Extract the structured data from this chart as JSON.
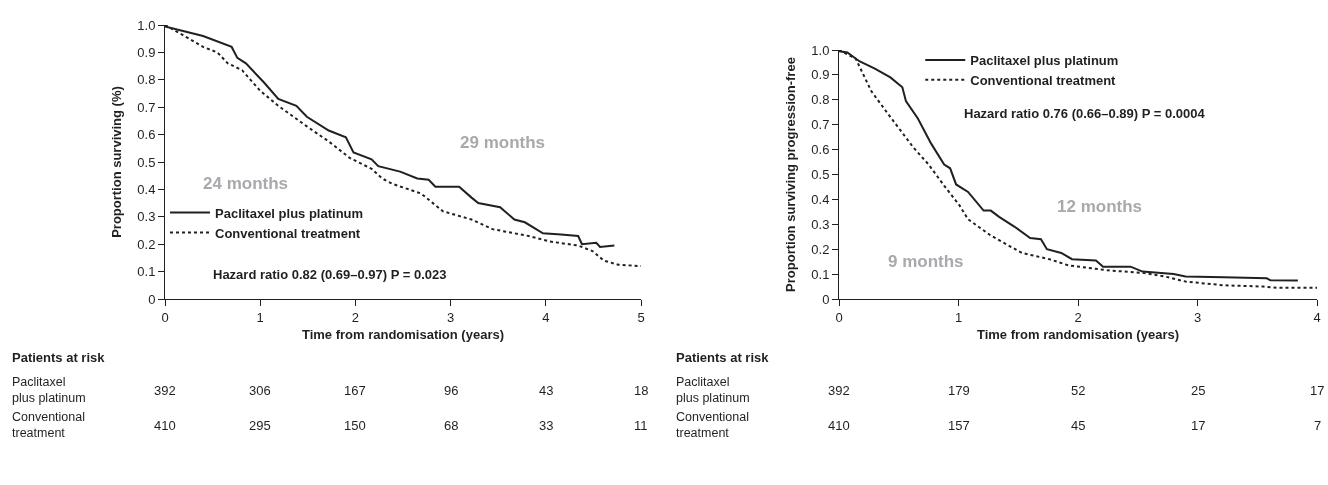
{
  "chart_data": [
    {
      "type": "line",
      "xlabel": "Time from randomisation (years)",
      "ylabel": "Proportion surviving (%)",
      "xlim": [
        0,
        5
      ],
      "xticks": [
        0,
        1,
        2,
        3,
        4,
        5
      ],
      "ylim": [
        0,
        1
      ],
      "yticks": [
        0,
        0.1,
        0.2,
        0.3,
        0.4,
        0.5,
        0.6,
        0.7,
        0.8,
        0.9,
        {
          "value": 1,
          "label": "1.0"
        }
      ],
      "grid": false,
      "legend": "bottom left",
      "marker": "none",
      "series": [
        {
          "name": "Paclitaxel plus platinum",
          "color": "#231f20",
          "line_style": "solid",
          "x": [
            0,
            0.4,
            0.7,
            0.76,
            0.85,
            1.04,
            1.19,
            1.38,
            1.49,
            1.72,
            1.9,
            1.98,
            2.17,
            2.24,
            2.47,
            2.65,
            2.77,
            2.84,
            3.09,
            3.22,
            3.29,
            3.52,
            3.67,
            3.78,
            3.97,
            4.16,
            4.34,
            4.38,
            4.53,
            4.57,
            4.72
          ],
          "values": [
            0.995,
            0.96,
            0.92,
            0.88,
            0.86,
            0.79,
            0.73,
            0.705,
            0.665,
            0.615,
            0.59,
            0.535,
            0.51,
            0.485,
            0.465,
            0.44,
            0.435,
            0.41,
            0.41,
            0.37,
            0.35,
            0.335,
            0.29,
            0.28,
            0.24,
            0.235,
            0.23,
            0.2,
            0.205,
            0.19,
            0.195
          ]
        },
        {
          "name": "Conventional treatment",
          "color": "#231f20",
          "line_style": "dotted",
          "x": [
            0,
            0.18,
            0.4,
            0.55,
            0.66,
            0.81,
            1,
            1.19,
            1.49,
            1.72,
            1.94,
            2.17,
            2.28,
            2.39,
            2.69,
            2.92,
            3.22,
            3.44,
            3.82,
            4.04,
            4.34,
            4.49,
            4.61,
            4.76,
            5
          ],
          "values": [
            1,
            0.965,
            0.92,
            0.9,
            0.86,
            0.835,
            0.76,
            0.705,
            0.63,
            0.575,
            0.515,
            0.475,
            0.44,
            0.42,
            0.385,
            0.32,
            0.29,
            0.255,
            0.23,
            0.21,
            0.195,
            0.175,
            0.14,
            0.125,
            0.12
          ]
        }
      ],
      "annotations": [
        "Hazard ratio 0.82 (0.69–0.97) P = 0.023",
        "24 months",
        "29 months",
        "Patients at risk",
        "Paclitaxel\nplus platinum",
        "Conventional\ntreatment",
        "392",
        "306",
        "167",
        "96",
        "43",
        "18",
        "410",
        "295",
        "150",
        "68",
        "33",
        "11"
      ]
    },
    {
      "type": "line",
      "xlabel": "Time from randomisation (years)",
      "ylabel": "Proportion surviving progression-free",
      "xlim": [
        0,
        4
      ],
      "xticks": [
        0,
        1,
        2,
        3,
        4
      ],
      "ylim": [
        0,
        1
      ],
      "yticks": [
        0,
        0.1,
        0.2,
        0.3,
        0.4,
        0.5,
        0.6,
        0.7,
        0.8,
        0.9,
        {
          "value": 1,
          "label": "1.0"
        }
      ],
      "grid": false,
      "legend": "top",
      "marker": "none",
      "series": [
        {
          "name": "Paclitaxel plus platinum",
          "color": "#231f20",
          "line_style": "solid",
          "x": [
            0,
            0.07,
            0.17,
            0.3,
            0.43,
            0.53,
            0.56,
            0.66,
            0.77,
            0.88,
            0.93,
            0.98,
            1.08,
            1.21,
            1.27,
            1.34,
            1.47,
            1.6,
            1.69,
            1.74,
            1.86,
            1.95,
            2.15,
            2.21,
            2.44,
            2.54,
            2.8,
            2.9,
            3.22,
            3.58,
            3.61,
            3.84
          ],
          "values": [
            0.995,
            0.99,
            0.955,
            0.925,
            0.89,
            0.85,
            0.795,
            0.725,
            0.625,
            0.54,
            0.525,
            0.46,
            0.43,
            0.355,
            0.355,
            0.33,
            0.29,
            0.245,
            0.24,
            0.2,
            0.185,
            0.16,
            0.155,
            0.13,
            0.13,
            0.11,
            0.1,
            0.09,
            0.087,
            0.083,
            0.075,
            0.074
          ]
        },
        {
          "name": "Conventional treatment",
          "color": "#231f20",
          "line_style": "dotted",
          "x": [
            0,
            0.14,
            0.27,
            0.4,
            0.62,
            0.75,
            0.88,
            1.01,
            1.08,
            1.27,
            1.53,
            1.76,
            1.92,
            2.25,
            2.54,
            2.73,
            2.9,
            3.22,
            3.55,
            3.67,
            4
          ],
          "values": [
            1,
            0.965,
            0.835,
            0.75,
            0.61,
            0.54,
            0.455,
            0.375,
            0.32,
            0.255,
            0.185,
            0.16,
            0.135,
            0.115,
            0.105,
            0.09,
            0.07,
            0.055,
            0.05,
            0.045,
            0.045
          ]
        }
      ],
      "annotations": [
        "Hazard ratio 0.76 (0.66–0.89) P = 0.0004",
        "9 months",
        "12 months",
        "Patients at risk",
        "Paclitaxel\nplus platinum",
        "Conventional\ntreatment",
        "392",
        "179",
        "52",
        "25",
        "17",
        "410",
        "157",
        "45",
        "17",
        "7"
      ]
    }
  ]
}
